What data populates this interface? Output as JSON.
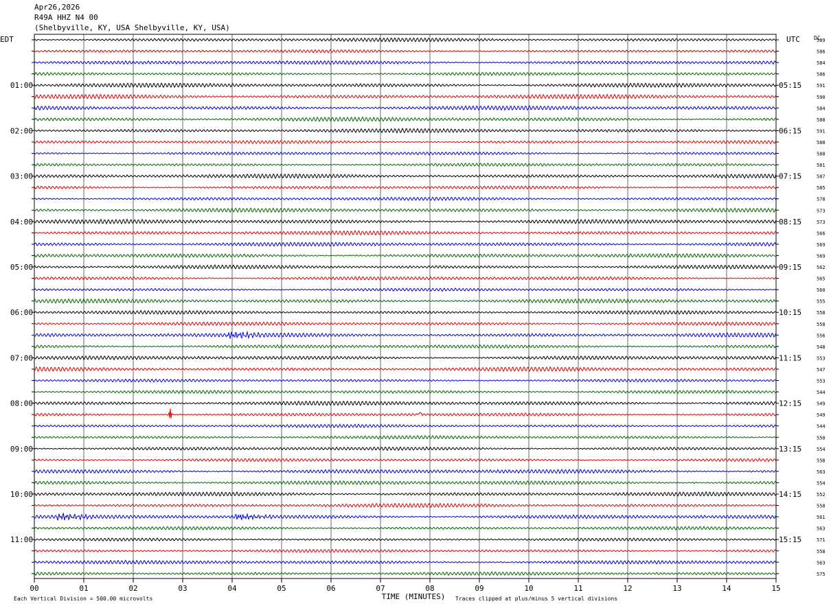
{
  "header": {
    "date": "Apr26,2026",
    "station": "R49A HHZ N4 00",
    "location": "(Shelbyville, KY, USA Shelbyville, KY, USA)"
  },
  "labels": {
    "left_tz": "EDT",
    "right_tz": "UTC",
    "dc_header": "DC",
    "xlabel": "TIME (MINUTES)",
    "scale_note": "Each Vertical Division =  500.00 microvolts",
    "clip_note": "Traces clipped at plus/minus 5 vertical divisions"
  },
  "colors": {
    "trace_cycle": [
      "#000000",
      "#dd0000",
      "#0000cc",
      "#006600"
    ],
    "grid": "#000000"
  },
  "chart_data": {
    "type": "line",
    "title": "R49A HHZ N4 00",
    "xlabel": "TIME (MINUTES)",
    "xlim": [
      0,
      15
    ],
    "x_ticks": [
      "00",
      "01",
      "02",
      "03",
      "04",
      "05",
      "06",
      "07",
      "08",
      "09",
      "10",
      "11",
      "12",
      "13",
      "14",
      "15"
    ],
    "trace_minutes": 15,
    "traces_per_hour": 4,
    "left_hour_labels": [
      "01:00",
      "02:00",
      "03:00",
      "04:00",
      "05:00",
      "06:00",
      "07:00",
      "08:00",
      "09:00",
      "10:00",
      "11:00"
    ],
    "right_hour_labels": [
      "05:15",
      "06:15",
      "07:15",
      "08:15",
      "09:15",
      "10:15",
      "11:15",
      "12:15",
      "13:15",
      "14:15",
      "15:15"
    ],
    "trace_dc_offsets": [
      589,
      586,
      584,
      586,
      591,
      590,
      584,
      588,
      591,
      588,
      588,
      581,
      587,
      585,
      578,
      573,
      573,
      566,
      569,
      569,
      562,
      565,
      560,
      555,
      558,
      558,
      556,
      548,
      553,
      547,
      553,
      544,
      549,
      549,
      544,
      550,
      554,
      558,
      563,
      554,
      552,
      558,
      561,
      563,
      571,
      558,
      563,
      575
    ],
    "events": [
      {
        "trace": 33,
        "minute": 2.75,
        "note": "spike"
      },
      {
        "trace": 33,
        "minute": 7.8,
        "note": "spike"
      },
      {
        "trace": 42,
        "minute": 4.2,
        "note": "burst"
      },
      {
        "trace": 26,
        "minute": 4.05,
        "note": "burst"
      },
      {
        "trace": 42,
        "minute": 0.6,
        "note": "burst"
      }
    ]
  }
}
